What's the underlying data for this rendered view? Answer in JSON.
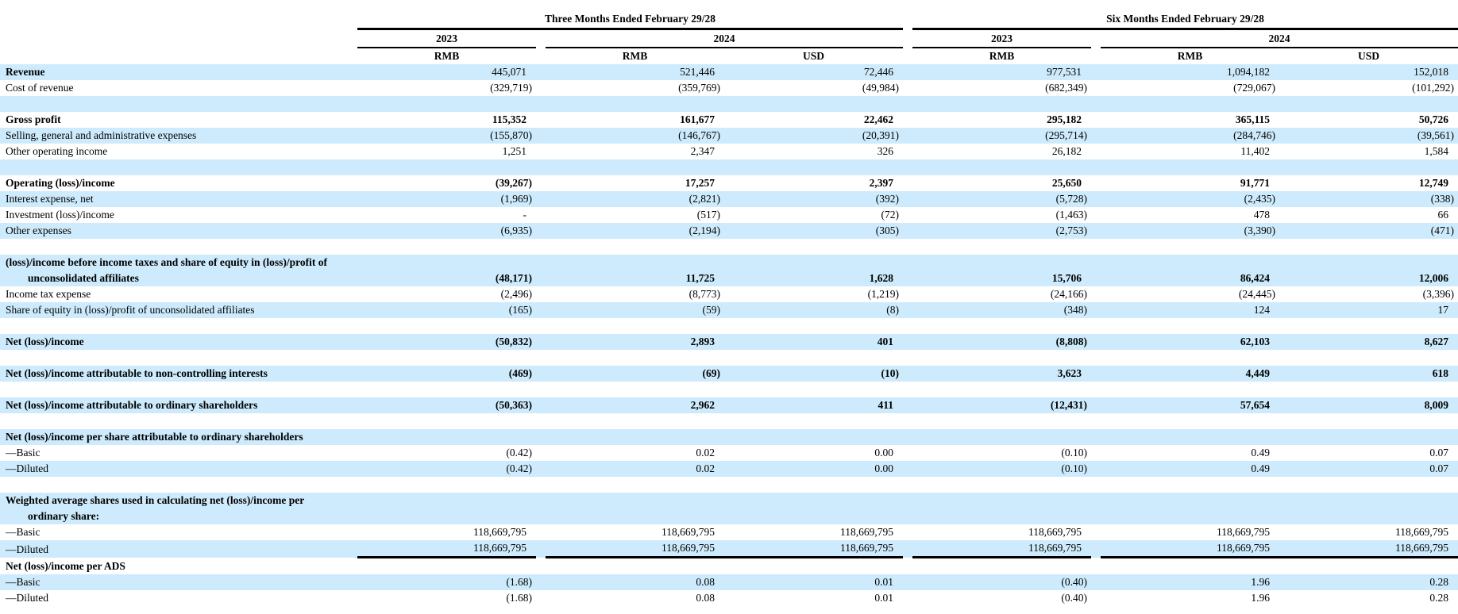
{
  "table": {
    "header": {
      "three_months": "Three Months Ended February 29/28",
      "six_months": "Six Months Ended February 29/28",
      "years": [
        "2023",
        "2024",
        "2023",
        "2024"
      ],
      "currencies": [
        "RMB",
        "RMB",
        "USD",
        "RMB",
        "RMB",
        "USD"
      ]
    },
    "colors": {
      "stripe": "#cdebfc",
      "rule": "#000000"
    },
    "rows": [
      {
        "label": "Revenue",
        "bold_label": true,
        "bold_values": false,
        "shade": true,
        "values": [
          "445,071",
          "521,446",
          "72,446",
          "977,531",
          "1,094,182",
          "152,018"
        ]
      },
      {
        "label": "Cost of revenue",
        "bold_label": false,
        "bold_values": false,
        "shade": false,
        "values": [
          "(329,719)",
          "(359,769)",
          "(49,984)",
          "(682,349)",
          "(729,067)",
          "(101,292)"
        ]
      },
      {
        "spacer": true,
        "shade": true
      },
      {
        "label": "Gross profit",
        "bold_label": true,
        "bold_values": true,
        "shade": false,
        "values": [
          "115,352",
          "161,677",
          "22,462",
          "295,182",
          "365,115",
          "50,726"
        ]
      },
      {
        "label": "Selling, general and administrative expenses",
        "bold_label": false,
        "bold_values": false,
        "shade": true,
        "values": [
          "(155,870)",
          "(146,767)",
          "(20,391)",
          "(295,714)",
          "(284,746)",
          "(39,561)"
        ]
      },
      {
        "label": "Other operating income",
        "bold_label": false,
        "bold_values": false,
        "shade": false,
        "values": [
          "1,251",
          "2,347",
          "326",
          "26,182",
          "11,402",
          "1,584"
        ]
      },
      {
        "spacer": true,
        "shade": true
      },
      {
        "label": "Operating (loss)/income",
        "bold_label": true,
        "bold_values": true,
        "shade": false,
        "values": [
          "(39,267)",
          "17,257",
          "2,397",
          "25,650",
          "91,771",
          "12,749"
        ]
      },
      {
        "label": "Interest expense, net",
        "bold_label": false,
        "bold_values": false,
        "shade": true,
        "values": [
          "(1,969)",
          "(2,821)",
          "(392)",
          "(5,728)",
          "(2,435)",
          "(338)"
        ]
      },
      {
        "label": "Investment (loss)/income",
        "bold_label": false,
        "bold_values": false,
        "shade": false,
        "values": [
          "-",
          "(517)",
          "(72)",
          "(1,463)",
          "478",
          "66"
        ]
      },
      {
        "label": "Other expenses",
        "bold_label": false,
        "bold_values": false,
        "shade": true,
        "values": [
          "(6,935)",
          "(2,194)",
          "(305)",
          "(2,753)",
          "(3,390)",
          "(471)"
        ]
      },
      {
        "spacer": true,
        "shade": false
      },
      {
        "label": "(loss)/income before income taxes and share of equity in (loss)/profit of",
        "label2": "unconsolidated affiliates",
        "bold_label": true,
        "bold_values": true,
        "shade": true,
        "values": [
          "(48,171)",
          "11,725",
          "1,628",
          "15,706",
          "86,424",
          "12,006"
        ]
      },
      {
        "label": "Income tax expense",
        "bold_label": false,
        "bold_values": false,
        "shade": false,
        "values": [
          "(2,496)",
          "(8,773)",
          "(1,219)",
          "(24,166)",
          "(24,445)",
          "(3,396)"
        ]
      },
      {
        "label": "Share of equity in (loss)/profit of unconsolidated affiliates",
        "bold_label": false,
        "bold_values": false,
        "shade": true,
        "values": [
          "(165)",
          "(59)",
          "(8)",
          "(348)",
          "124",
          "17"
        ]
      },
      {
        "spacer": true,
        "shade": false
      },
      {
        "label": "Net (loss)/income",
        "bold_label": true,
        "bold_values": true,
        "shade": true,
        "values": [
          "(50,832)",
          "2,893",
          "401",
          "(8,808)",
          "62,103",
          "8,627"
        ]
      },
      {
        "spacer": true,
        "shade": false
      },
      {
        "label": "Net (loss)/income attributable to non-controlling interests",
        "bold_label": true,
        "bold_values": true,
        "shade": true,
        "values": [
          "(469)",
          "(69)",
          "(10)",
          "3,623",
          "4,449",
          "618"
        ]
      },
      {
        "spacer": true,
        "shade": false
      },
      {
        "label": "Net (loss)/income attributable to ordinary shareholders",
        "bold_label": true,
        "bold_values": true,
        "shade": true,
        "values": [
          "(50,363)",
          "2,962",
          "411",
          "(12,431)",
          "57,654",
          "8,009"
        ]
      },
      {
        "spacer": true,
        "shade": false
      },
      {
        "label": "Net (loss)/income per share attributable to ordinary shareholders",
        "bold_label": true,
        "shade": true
      },
      {
        "label": "—Basic",
        "bold_label": false,
        "bold_values": false,
        "shade": false,
        "values": [
          "(0.42)",
          "0.02",
          "0.00",
          "(0.10)",
          "0.49",
          "0.07"
        ]
      },
      {
        "label": "—Diluted",
        "bold_label": false,
        "bold_values": false,
        "shade": true,
        "values": [
          "(0.42)",
          "0.02",
          "0.00",
          "(0.10)",
          "0.49",
          "0.07"
        ]
      },
      {
        "spacer": true,
        "shade": false
      },
      {
        "label": "Weighted average shares used in calculating net (loss)/income per",
        "label2": "ordinary share:",
        "bold_label": true,
        "shade": true
      },
      {
        "label": "—Basic",
        "bold_label": false,
        "bold_values": false,
        "shade": false,
        "values": [
          "118,669,795",
          "118,669,795",
          "118,669,795",
          "118,669,795",
          "118,669,795",
          "118,669,795"
        ]
      },
      {
        "label": "—Diluted",
        "bold_label": false,
        "bold_values": false,
        "shade": true,
        "underline": true,
        "values": [
          "118,669,795",
          "118,669,795",
          "118,669,795",
          "118,669,795",
          "118,669,795",
          "118,669,795"
        ]
      },
      {
        "label": "Net (loss)/income per ADS",
        "bold_label": true,
        "shade": false
      },
      {
        "label": "—Basic",
        "bold_label": false,
        "bold_values": false,
        "shade": true,
        "values": [
          "(1.68)",
          "0.08",
          "0.01",
          "(0.40)",
          "1.96",
          "0.28"
        ]
      },
      {
        "label": "—Diluted",
        "bold_label": false,
        "bold_values": false,
        "shade": false,
        "values": [
          "(1.68)",
          "0.08",
          "0.01",
          "(0.40)",
          "1.96",
          "0.28"
        ]
      }
    ]
  }
}
